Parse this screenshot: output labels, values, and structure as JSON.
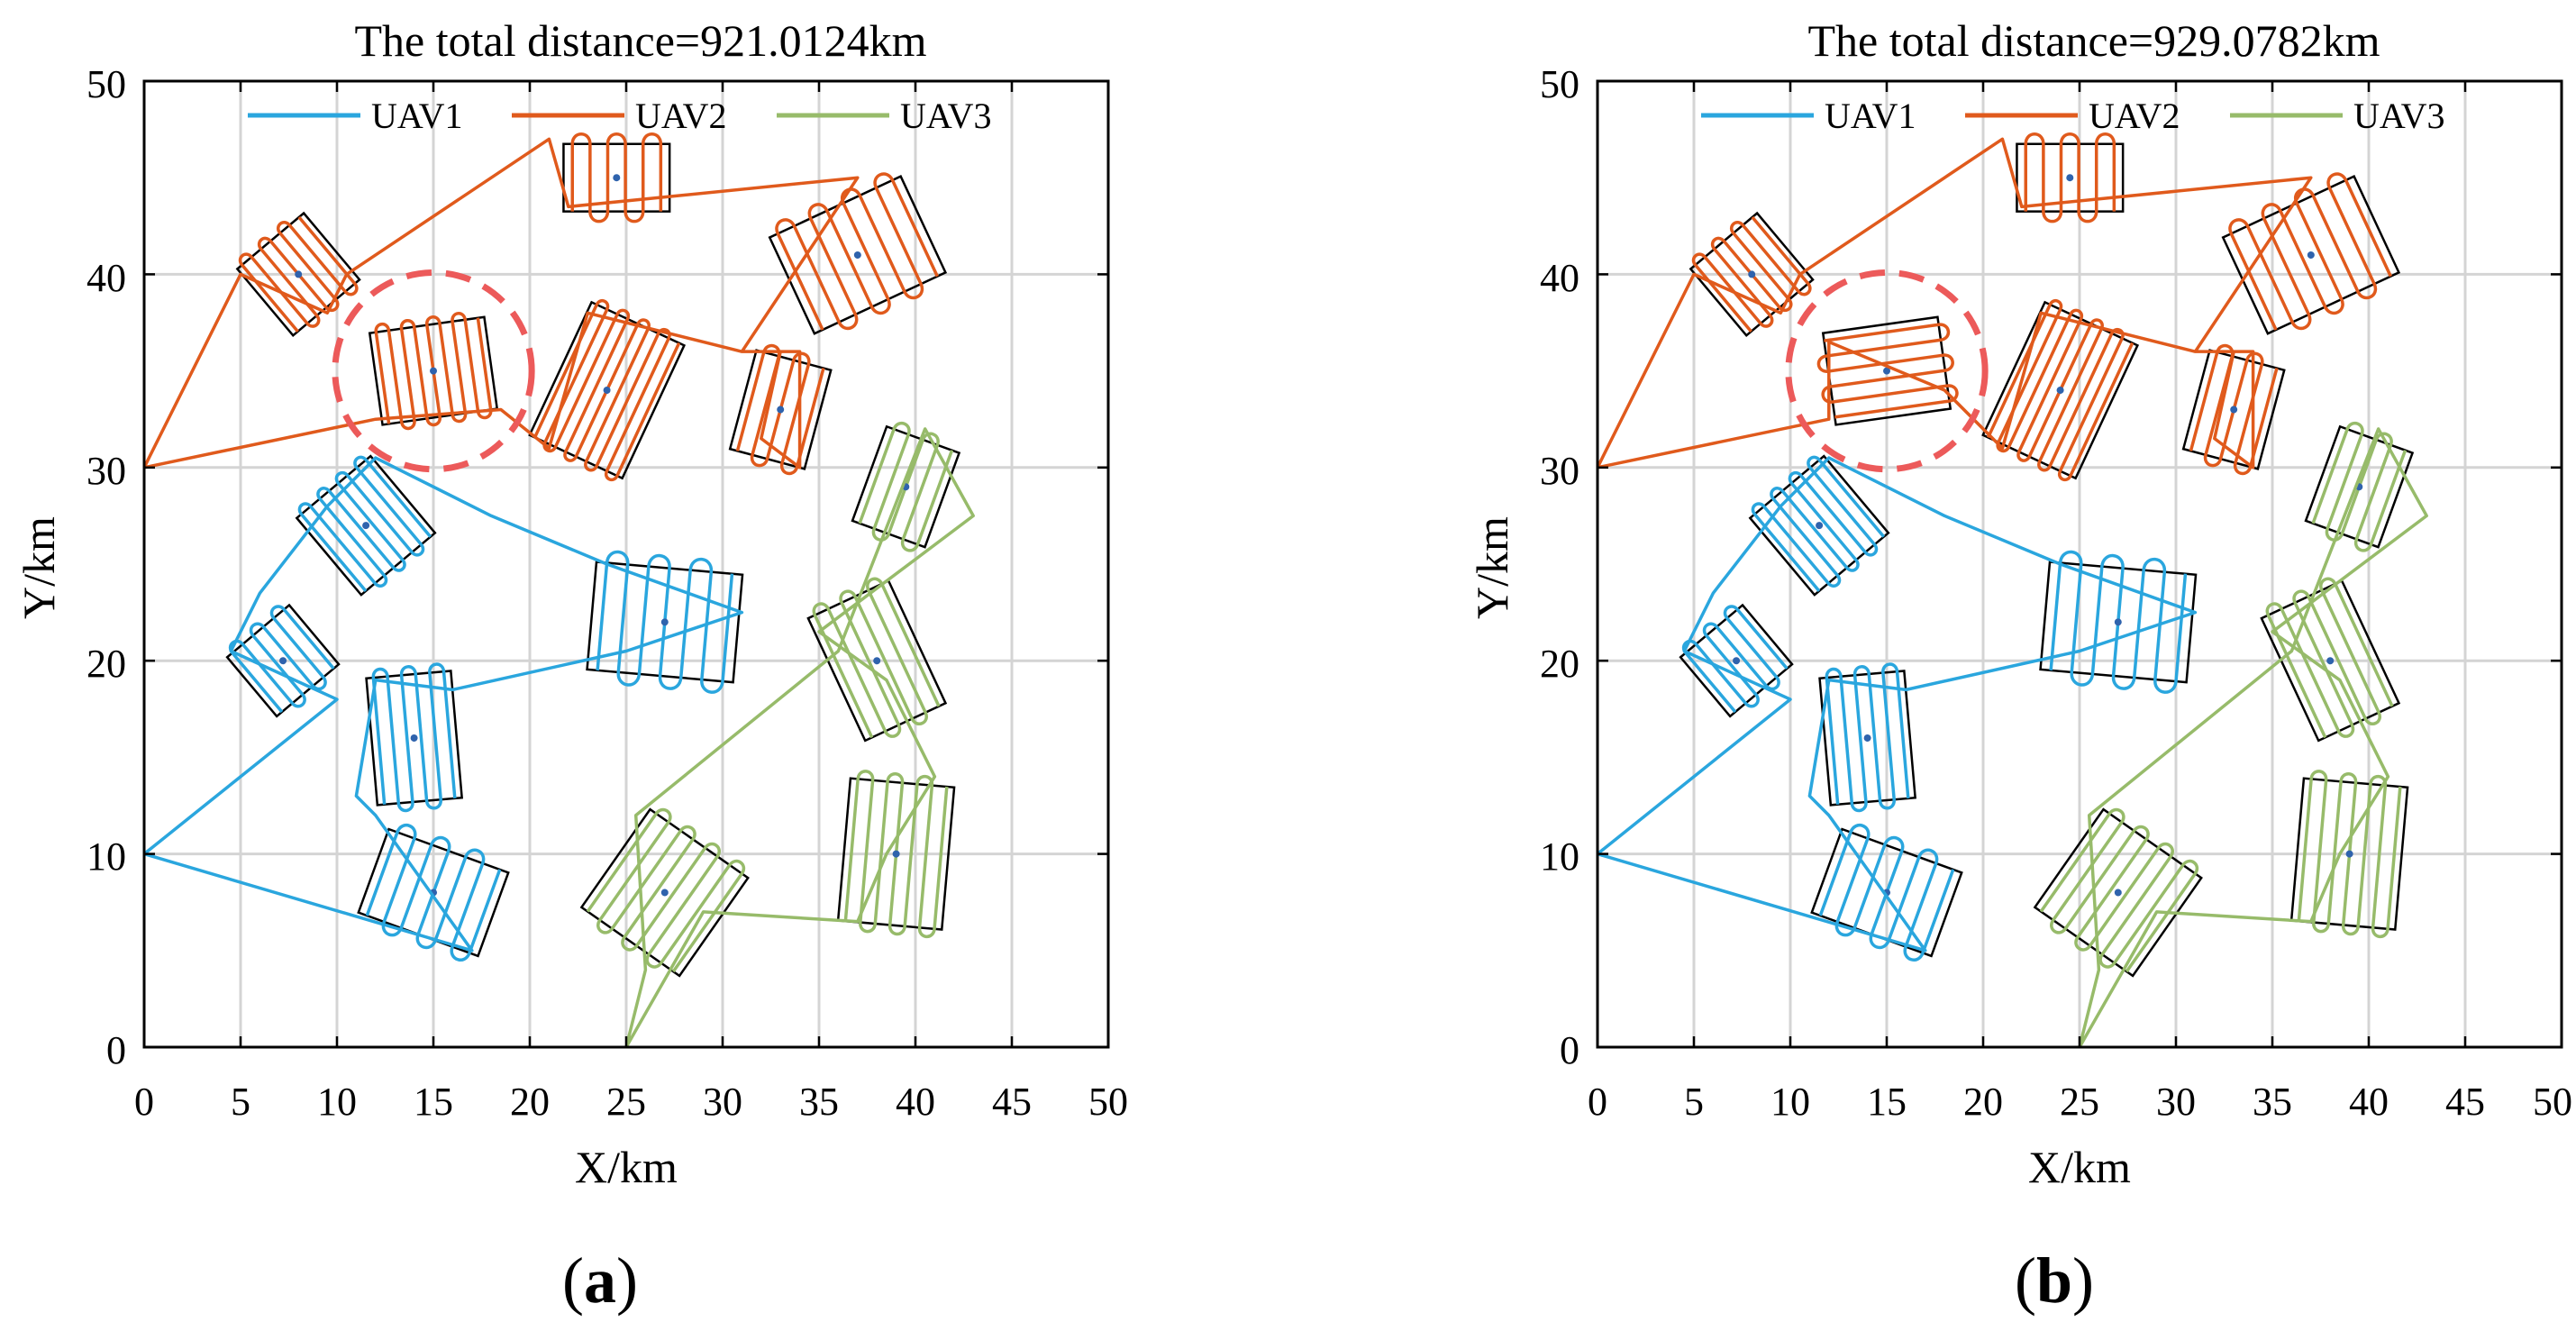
{
  "colors": {
    "uav1": "#2aa6de",
    "uav2": "#e05a1c",
    "uav3": "#97bb6a",
    "highlight": "#ec5a5a",
    "grid": "#d4d4d4",
    "boundary": "#000000",
    "center": "#2f63ad"
  },
  "chart_data": [
    {
      "type": "line",
      "panel_label": "(a)",
      "panel_letter": "a",
      "title": "The total distance=921.0124km",
      "xlabel": "X/km",
      "ylabel": "Y/km",
      "xlim": [
        0,
        50
      ],
      "ylim": [
        0,
        50
      ],
      "xticks": [
        "0",
        "5",
        "10",
        "15",
        "20",
        "25",
        "30",
        "35",
        "40",
        "45",
        "50"
      ],
      "yticks": [
        "0",
        "10",
        "20",
        "30",
        "40",
        "50"
      ],
      "grid": true,
      "legend_position": "top",
      "series": [
        {
          "name": "UAV1",
          "color_key": "uav1",
          "route": [
            [
              0,
              10
            ],
            [
              10,
              18
            ],
            [
              4.5,
              20.5
            ],
            [
              6,
              23.5
            ],
            [
              9.5,
              28
            ],
            [
              12,
              30.5
            ],
            [
              18,
              27.5
            ],
            [
              24,
              25
            ],
            [
              31,
              22.5
            ],
            [
              25,
              20.5
            ],
            [
              16,
              18.5
            ],
            [
              12,
              19
            ],
            [
              11,
              13
            ],
            [
              12,
              12
            ],
            [
              17,
              5
            ],
            [
              0,
              10
            ]
          ]
        },
        {
          "name": "UAV2",
          "color_key": "uav2",
          "route": [
            [
              0,
              30
            ],
            [
              5,
              40
            ],
            [
              9.5,
              38
            ],
            [
              10.5,
              40
            ],
            [
              21,
              47
            ],
            [
              22,
              43.5
            ],
            [
              37,
              45
            ],
            [
              31,
              36
            ],
            [
              34,
              36
            ],
            [
              34,
              30
            ],
            [
              32,
              31.5
            ],
            [
              33,
              36
            ],
            [
              31,
              36
            ],
            [
              23,
              38
            ],
            [
              21,
              31
            ],
            [
              18.5,
              33
            ],
            [
              12,
              32.5
            ],
            [
              0,
              30
            ]
          ]
        },
        {
          "name": "UAV3",
          "color_key": "uav3",
          "route": [
            [
              25,
              0
            ],
            [
              29,
              7
            ],
            [
              37,
              6.5
            ],
            [
              38.5,
              10
            ],
            [
              41,
              14
            ],
            [
              38.5,
              19
            ],
            [
              35,
              21.5
            ],
            [
              43,
              27.5
            ],
            [
              40.5,
              32
            ],
            [
              36,
              20.5
            ],
            [
              25.5,
              12
            ],
            [
              26,
              4
            ],
            [
              25,
              0
            ]
          ]
        }
      ],
      "regions": [
        {
          "uav": "uav1",
          "center": [
            11.5,
            27
          ],
          "width": 5,
          "height": 5.2,
          "angle": 40,
          "lanes": 8
        },
        {
          "uav": "uav1",
          "center": [
            7.2,
            20
          ],
          "width": 4.2,
          "height": 4,
          "angle": 40,
          "lanes": 6
        },
        {
          "uav": "uav1",
          "center": [
            14,
            16
          ],
          "width": 4.4,
          "height": 6.6,
          "angle": 5,
          "lanes": 6
        },
        {
          "uav": "uav1",
          "center": [
            15,
            8
          ],
          "width": 6.6,
          "height": 4.6,
          "angle": -20,
          "lanes": 7
        },
        {
          "uav": "uav1",
          "center": [
            27,
            22
          ],
          "width": 7.6,
          "height": 5.6,
          "angle": -5,
          "lanes": 7
        },
        {
          "uav": "uav2",
          "center": [
            8,
            40
          ],
          "width": 4.5,
          "height": 4.5,
          "angle": 40,
          "lanes": 7
        },
        {
          "uav": "uav2",
          "center": [
            24.5,
            45
          ],
          "width": 5.5,
          "height": 3.5,
          "angle": 0,
          "lanes": 6
        },
        {
          "uav": "uav2",
          "center": [
            37,
            41
          ],
          "width": 7.5,
          "height": 5.5,
          "angle": 25,
          "lanes": 8
        },
        {
          "uav": "uav2",
          "center": [
            15,
            35
          ],
          "width": 6,
          "height": 4.8,
          "angle": 8,
          "lanes": 9
        },
        {
          "uav": "uav2",
          "center": [
            24,
            34
          ],
          "width": 5.3,
          "height": 7.6,
          "angle": -25,
          "lanes": 9
        },
        {
          "uav": "uav2",
          "center": [
            33,
            33
          ],
          "width": 4,
          "height": 5.3,
          "angle": -15,
          "lanes": 5
        },
        {
          "uav": "uav3",
          "center": [
            39.5,
            29
          ],
          "width": 4,
          "height": 5.2,
          "angle": -20,
          "lanes": 5
        },
        {
          "uav": "uav3",
          "center": [
            38,
            20
          ],
          "width": 4.6,
          "height": 7,
          "angle": 25,
          "lanes": 6
        },
        {
          "uav": "uav3",
          "center": [
            39,
            10
          ],
          "width": 5.4,
          "height": 7.4,
          "angle": -5,
          "lanes": 7
        },
        {
          "uav": "uav3",
          "center": [
            27,
            8
          ],
          "width": 6.2,
          "height": 6.2,
          "angle": -35,
          "lanes": 8
        }
      ],
      "highlight_circle": {
        "center": [
          15,
          35
        ],
        "radius": 5.1
      }
    },
    {
      "type": "line",
      "panel_label": "(b)",
      "panel_letter": "b",
      "title": "The total distance=929.0782km",
      "xlabel": "X/km",
      "ylabel": "Y/km",
      "xlim": [
        0,
        50
      ],
      "ylim": [
        0,
        50
      ],
      "xticks": [
        "0",
        "5",
        "10",
        "15",
        "20",
        "25",
        "30",
        "35",
        "40",
        "45",
        "50"
      ],
      "yticks": [
        "0",
        "10",
        "20",
        "30",
        "40",
        "50"
      ],
      "grid": true,
      "legend_position": "top",
      "series": [
        {
          "name": "UAV1",
          "color_key": "uav1",
          "route": [
            [
              0,
              10
            ],
            [
              10,
              18
            ],
            [
              4.5,
              20.5
            ],
            [
              6,
              23.5
            ],
            [
              9.5,
              28
            ],
            [
              12,
              30.5
            ],
            [
              18,
              27.5
            ],
            [
              24,
              25
            ],
            [
              31,
              22.5
            ],
            [
              25,
              20.5
            ],
            [
              16,
              18.5
            ],
            [
              12,
              19
            ],
            [
              11,
              13
            ],
            [
              12,
              12
            ],
            [
              17,
              5
            ],
            [
              0,
              10
            ]
          ]
        },
        {
          "name": "UAV2",
          "color_key": "uav2",
          "route": [
            [
              0,
              30
            ],
            [
              5,
              40
            ],
            [
              9.5,
              38
            ],
            [
              10.5,
              40
            ],
            [
              21,
              47
            ],
            [
              22,
              43.5
            ],
            [
              37,
              45
            ],
            [
              31,
              36
            ],
            [
              34,
              36
            ],
            [
              34,
              30
            ],
            [
              32,
              31.5
            ],
            [
              33,
              36
            ],
            [
              31,
              36
            ],
            [
              23,
              38
            ],
            [
              21,
              31
            ],
            [
              18,
              34
            ],
            [
              12,
              36.5
            ],
            [
              12,
              32.5
            ],
            [
              0,
              30
            ]
          ]
        },
        {
          "name": "UAV3",
          "color_key": "uav3",
          "route": [
            [
              25,
              0
            ],
            [
              29,
              7
            ],
            [
              37,
              6.5
            ],
            [
              38.5,
              10
            ],
            [
              41,
              14
            ],
            [
              38.5,
              19
            ],
            [
              35,
              21.5
            ],
            [
              43,
              27.5
            ],
            [
              40.5,
              32
            ],
            [
              36,
              20.5
            ],
            [
              25.5,
              12
            ],
            [
              26,
              4
            ],
            [
              25,
              0
            ]
          ]
        }
      ],
      "regions": [
        {
          "uav": "uav1",
          "center": [
            11.5,
            27
          ],
          "width": 5,
          "height": 5.2,
          "angle": 40,
          "lanes": 8
        },
        {
          "uav": "uav1",
          "center": [
            7.2,
            20
          ],
          "width": 4.2,
          "height": 4,
          "angle": 40,
          "lanes": 6
        },
        {
          "uav": "uav1",
          "center": [
            14,
            16
          ],
          "width": 4.4,
          "height": 6.6,
          "angle": 5,
          "lanes": 6
        },
        {
          "uav": "uav1",
          "center": [
            15,
            8
          ],
          "width": 6.6,
          "height": 4.6,
          "angle": -20,
          "lanes": 7
        },
        {
          "uav": "uav1",
          "center": [
            27,
            22
          ],
          "width": 7.6,
          "height": 5.6,
          "angle": -5,
          "lanes": 7
        },
        {
          "uav": "uav2",
          "center": [
            8,
            40
          ],
          "width": 4.5,
          "height": 4.5,
          "angle": 40,
          "lanes": 7
        },
        {
          "uav": "uav2",
          "center": [
            24.5,
            45
          ],
          "width": 5.5,
          "height": 3.5,
          "angle": 0,
          "lanes": 6
        },
        {
          "uav": "uav2",
          "center": [
            37,
            41
          ],
          "width": 7.5,
          "height": 5.5,
          "angle": 25,
          "lanes": 8
        },
        {
          "uav": "uav2",
          "center": [
            15,
            35
          ],
          "width": 6,
          "height": 4.8,
          "angle": 8,
          "lanes": 6,
          "sweep": "horizontal"
        },
        {
          "uav": "uav2",
          "center": [
            24,
            34
          ],
          "width": 5.3,
          "height": 7.6,
          "angle": -25,
          "lanes": 9
        },
        {
          "uav": "uav2",
          "center": [
            33,
            33
          ],
          "width": 4,
          "height": 5.3,
          "angle": -15,
          "lanes": 5
        },
        {
          "uav": "uav3",
          "center": [
            39.5,
            29
          ],
          "width": 4,
          "height": 5.2,
          "angle": -20,
          "lanes": 5
        },
        {
          "uav": "uav3",
          "center": [
            38,
            20
          ],
          "width": 4.6,
          "height": 7,
          "angle": 25,
          "lanes": 6
        },
        {
          "uav": "uav3",
          "center": [
            39,
            10
          ],
          "width": 5.4,
          "height": 7.4,
          "angle": -5,
          "lanes": 7
        },
        {
          "uav": "uav3",
          "center": [
            27,
            8
          ],
          "width": 6.2,
          "height": 6.2,
          "angle": -35,
          "lanes": 8
        }
      ],
      "highlight_circle": {
        "center": [
          15,
          35
        ],
        "radius": 5.1
      }
    }
  ]
}
